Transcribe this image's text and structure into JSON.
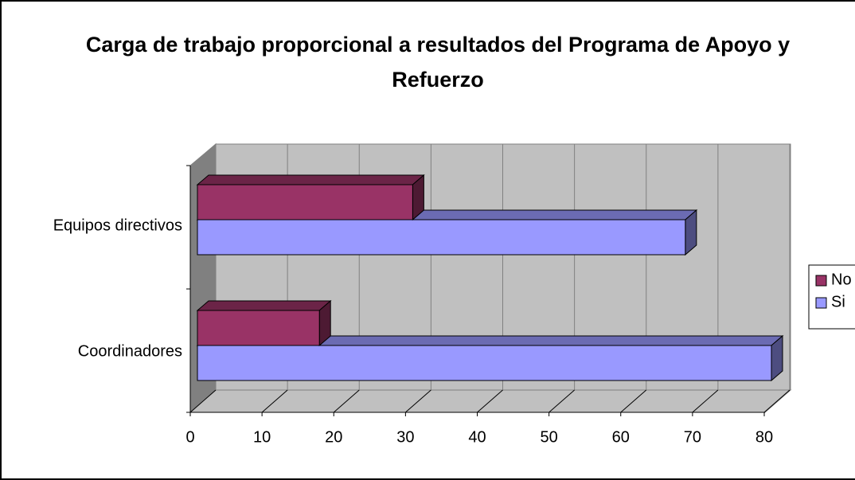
{
  "chart_data": {
    "type": "bar3d_horizontal",
    "title": "Carga de trabajo proporcional a resultados del Programa de Apoyo y Refuerzo",
    "categories": [
      "Coordinadores",
      "Equipos directivos"
    ],
    "series": [
      {
        "name": "No",
        "color": "#993366",
        "values": [
          17,
          30
        ]
      },
      {
        "name": "Si",
        "color": "#9999ff",
        "values": [
          80,
          68
        ]
      }
    ],
    "xlim": [
      0,
      80
    ],
    "xticks": [
      0,
      10,
      20,
      30,
      40,
      50,
      60,
      70,
      80
    ],
    "grid": true,
    "legend": "right"
  }
}
